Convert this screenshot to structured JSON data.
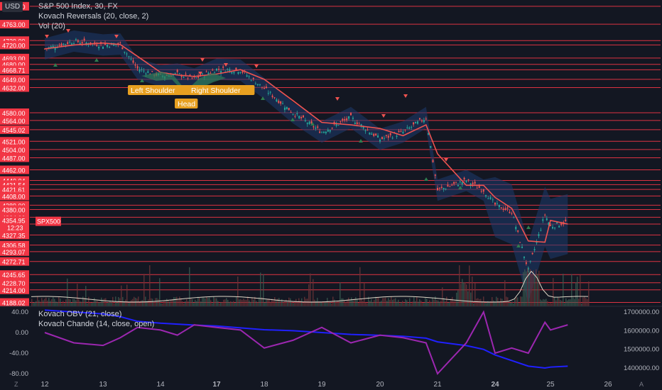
{
  "window": {
    "currency": "USD"
  },
  "legend": {
    "symbol_line": "S&P 500 Index, 30, FX",
    "indicator_line": "Kovach Reversals (20, close, 2)",
    "volume_line": "Vol (20)"
  },
  "sub_legend": {
    "obv_line": "Kovach OBV (21, close)",
    "chande_line": "Kovach Chande (14, close, open)"
  },
  "price_levels": [
    "4800.00",
    "4763.00",
    "4729.00",
    "4720.00",
    "4693.00",
    "4680.00",
    "4668.71",
    "4649.00",
    "4632.00",
    "4580.00",
    "4564.00",
    "4545.02",
    "4521.00",
    "4504.00",
    "4487.00",
    "4462.00",
    "4440.04",
    "4431.54",
    "4421.61",
    "4408.00",
    "4389.00",
    "4380.00",
    "4364.00",
    "4350.00",
    "4327.35",
    "4306.58",
    "4293.07",
    "4272.71",
    "4245.65",
    "4228.70",
    "4214.00",
    "4188.02"
  ],
  "current_price": {
    "value": "4354.95",
    "time": "12:23",
    "symbol": "SPX500"
  },
  "pattern_labels": {
    "left_shoulder": "Left Shoulder",
    "head": "Head",
    "right_shoulder": "Right Shoulder"
  },
  "lower_pane": {
    "left_axis": [
      "40.00",
      "0.00",
      "-40.00",
      "-80.00"
    ],
    "right_axis": [
      "1700000.00",
      "1600000.00",
      "1500000.00",
      "1400000.00"
    ]
  },
  "time_axis": {
    "labels": [
      "12",
      "13",
      "14",
      "17",
      "18",
      "19",
      "20",
      "21",
      "24",
      "25",
      "26"
    ],
    "bold": [
      "17",
      "24"
    ]
  },
  "corner_controls": {
    "left": "Z",
    "right": "A"
  },
  "colors": {
    "background": "#131722",
    "level_line": "#f23645",
    "price_line": "#ef5350",
    "up_candle": "#26a69a",
    "down_candle": "#ef5350",
    "band": "#1e3a6e",
    "obv": "#2020ff",
    "chande": "#9c27b0",
    "pattern_label": "#e8a020"
  },
  "chart_data": {
    "type": "line",
    "title": "S&P 500 Index, 30, FX",
    "x": [
      "12",
      "12.5",
      "13",
      "13.3",
      "13.6",
      "14",
      "14.3",
      "14.6",
      "17",
      "17.5",
      "18",
      "18.5",
      "19",
      "19.5",
      "20",
      "20.4",
      "20.8",
      "21",
      "21.5",
      "21.8",
      "24",
      "24.3",
      "24.6",
      "24.9",
      "25",
      "25.3"
    ],
    "close": [
      4712,
      4728,
      4720,
      4722,
      4671,
      4656,
      4660,
      4650,
      4670,
      4668,
      4630,
      4580,
      4540,
      4570,
      4525,
      4540,
      4570,
      4420,
      4440,
      4420,
      4390,
      4375,
      4255,
      4370,
      4345,
      4355
    ],
    "ylim": [
      4180,
      4810
    ],
    "series": [
      {
        "name": "Kovach OBV (21, close)",
        "values": [
          1710000,
          1700000,
          1690000,
          1675000,
          1650000,
          1640000,
          1635000,
          1630000,
          1625000,
          1615000,
          1605000,
          1600000,
          1590000,
          1580000,
          1575000,
          1570000,
          1560000,
          1540000,
          1520000,
          1500000,
          1470000,
          1440000,
          1410000,
          1400000,
          1405000,
          1410000
        ]
      },
      {
        "name": "Kovach Chande (14, close, open)",
        "values": [
          0,
          -20,
          -25,
          -10,
          10,
          5,
          -5,
          15,
          10,
          5,
          -30,
          -15,
          10,
          -20,
          -5,
          -10,
          -20,
          -80,
          -20,
          40,
          -40,
          -30,
          -40,
          20,
          5,
          15
        ]
      }
    ]
  }
}
